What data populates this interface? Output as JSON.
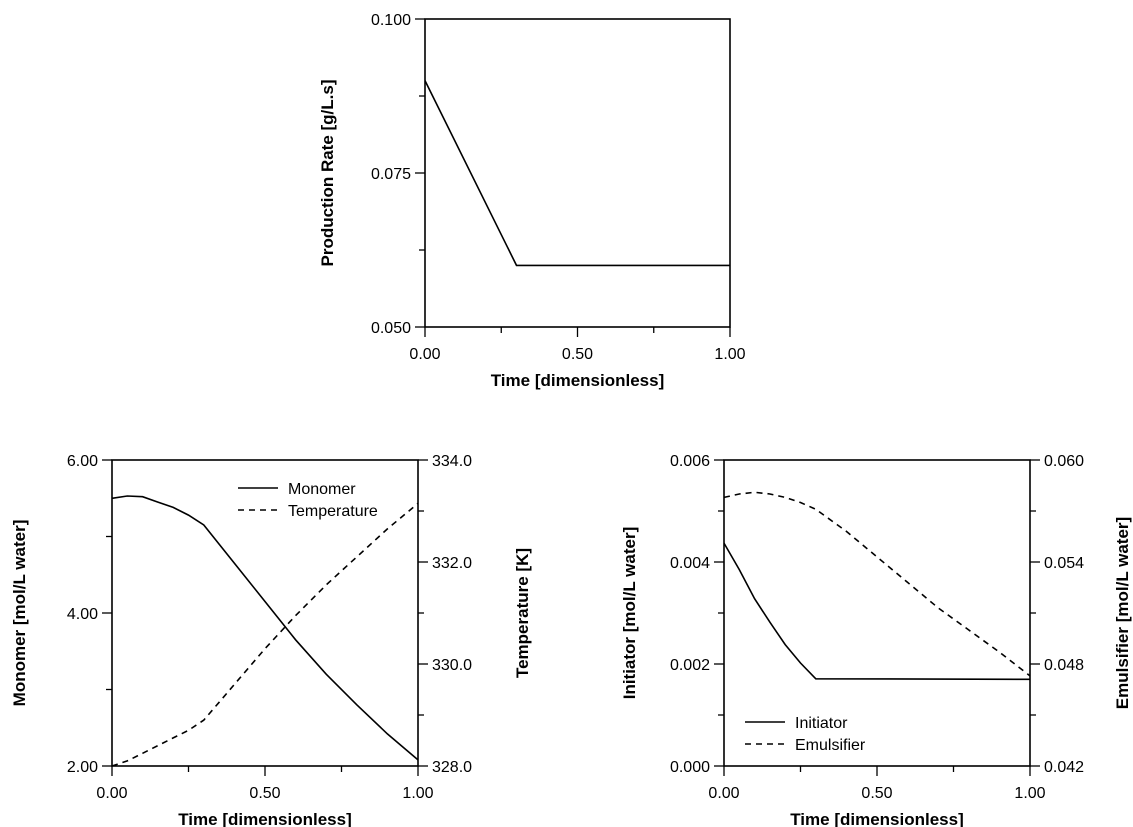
{
  "chart_data": [
    {
      "type": "line",
      "title": "",
      "xlabel": "Time [dimensionless]",
      "ylabel": "Production Rate [g/L.s]",
      "xlim": [
        0,
        1
      ],
      "ylim": [
        0.05,
        0.1
      ],
      "xticks": [
        0,
        0.5,
        1
      ],
      "xtick_labels": [
        "0.00",
        "0.50",
        "1.00"
      ],
      "yticks": [
        0.05,
        0.075,
        0.1
      ],
      "ytick_labels": [
        "0.050",
        "0.075",
        "0.100"
      ],
      "grid": false,
      "series": [
        {
          "style": "solid",
          "x": [
            0,
            0.3,
            1.0
          ],
          "y": [
            0.09,
            0.06,
            0.06
          ]
        }
      ]
    },
    {
      "type": "line",
      "title": "",
      "xlabel": "Time [dimensionless]",
      "ylabel": "Monomer [mol/L water]",
      "y2label": "Temperature [K]",
      "xlim": [
        0,
        1
      ],
      "ylim": [
        2,
        6
      ],
      "y2lim": [
        328,
        334
      ],
      "xticks": [
        0,
        0.5,
        1
      ],
      "xtick_labels": [
        "0.00",
        "0.50",
        "1.00"
      ],
      "yticks": [
        2,
        4,
        6
      ],
      "ytick_labels": [
        "2.00",
        "4.00",
        "6.00"
      ],
      "y2ticks": [
        328,
        330,
        332,
        334
      ],
      "y2tick_labels": [
        "328.0",
        "330.0",
        "332.0",
        "334.0"
      ],
      "legend_position": "top-right",
      "grid": false,
      "series": [
        {
          "name": "Monomer",
          "style": "solid",
          "axis": "left",
          "x": [
            0,
            0.05,
            0.1,
            0.15,
            0.2,
            0.25,
            0.3,
            0.35,
            0.4,
            0.5,
            0.6,
            0.7,
            0.8,
            0.9,
            1.0
          ],
          "y": [
            5.5,
            5.53,
            5.52,
            5.45,
            5.38,
            5.28,
            5.15,
            4.9,
            4.65,
            4.15,
            3.65,
            3.2,
            2.8,
            2.42,
            2.08
          ]
        },
        {
          "name": "Temperature",
          "style": "dashed",
          "axis": "right",
          "x": [
            0,
            0.05,
            0.1,
            0.15,
            0.2,
            0.25,
            0.3,
            0.35,
            0.4,
            0.5,
            0.6,
            0.7,
            0.8,
            0.9,
            1.0
          ],
          "y": [
            328.0,
            328.1,
            328.25,
            328.4,
            328.55,
            328.7,
            328.9,
            329.25,
            329.6,
            330.3,
            330.95,
            331.55,
            332.1,
            332.65,
            333.15
          ]
        }
      ]
    },
    {
      "type": "line",
      "title": "",
      "xlabel": "Time [dimensionless]",
      "ylabel": "Initiator [mol/L water]",
      "y2label": "Emulsifier [mol/L water]",
      "xlim": [
        0,
        1
      ],
      "ylim": [
        0,
        0.006
      ],
      "y2lim": [
        0.042,
        0.06
      ],
      "xticks": [
        0,
        0.5,
        1
      ],
      "xtick_labels": [
        "0.00",
        "0.50",
        "1.00"
      ],
      "yticks": [
        0,
        0.002,
        0.004,
        0.006
      ],
      "ytick_labels": [
        "0.000",
        "0.002",
        "0.004",
        "0.006"
      ],
      "y2ticks": [
        0.042,
        0.048,
        0.054,
        0.06
      ],
      "y2tick_labels": [
        "0.042",
        "0.048",
        "0.054",
        "0.060"
      ],
      "legend_position": "bottom-left",
      "grid": false,
      "series": [
        {
          "name": "Initiator",
          "style": "solid",
          "axis": "left",
          "x": [
            0,
            0.05,
            0.1,
            0.15,
            0.2,
            0.25,
            0.3,
            1.0
          ],
          "y": [
            0.00437,
            0.00385,
            0.00328,
            0.00282,
            0.00238,
            0.00202,
            0.00171,
            0.0017
          ]
        },
        {
          "name": "Emulsifier",
          "style": "dashed",
          "axis": "right",
          "x": [
            0,
            0.05,
            0.1,
            0.15,
            0.2,
            0.25,
            0.3,
            0.4,
            0.5,
            0.6,
            0.7,
            0.8,
            0.9,
            1.0
          ],
          "y": [
            0.0578,
            0.058,
            0.0581,
            0.058,
            0.0578,
            0.0575,
            0.0571,
            0.0558,
            0.0543,
            0.0528,
            0.0513,
            0.05,
            0.0487,
            0.0473
          ]
        }
      ]
    }
  ]
}
